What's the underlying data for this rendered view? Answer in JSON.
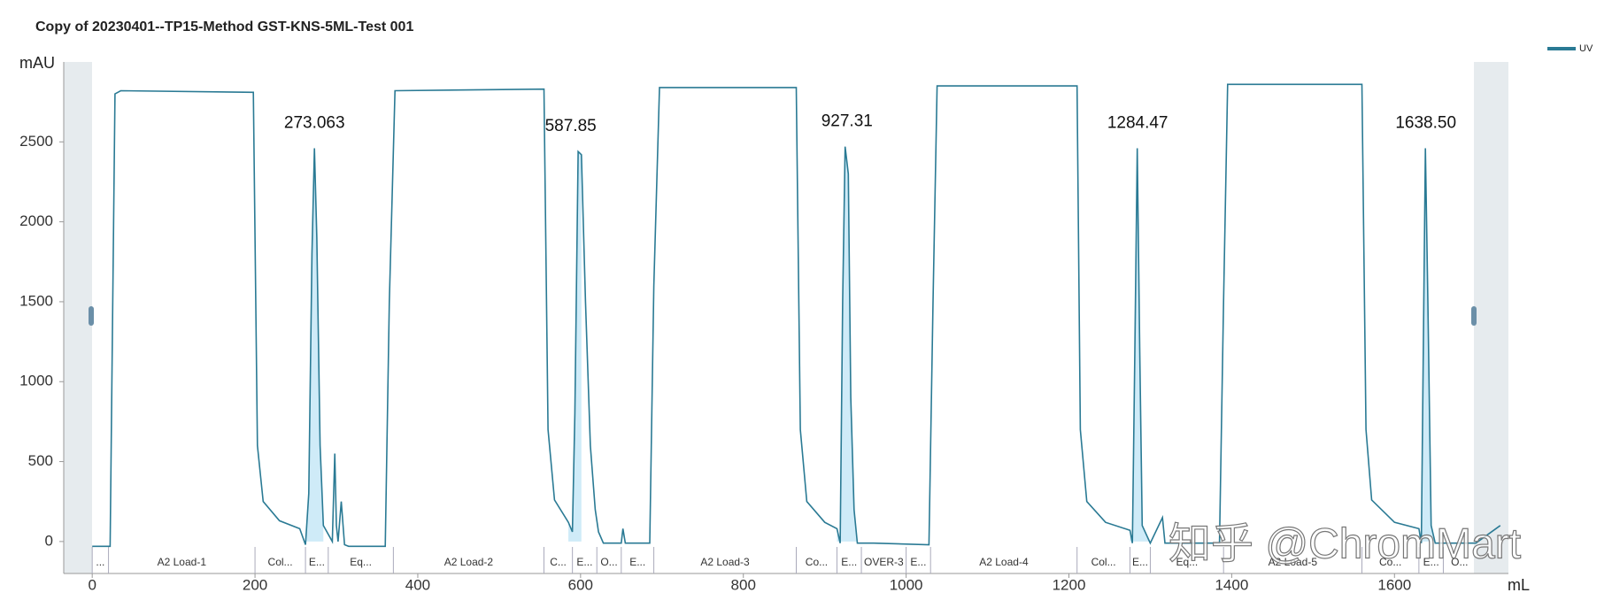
{
  "chart_data": {
    "type": "line",
    "title": "Copy of 20230401--TP15-Method GST-KNS-5ML-Test 001",
    "y_label": "mAU",
    "x_label": "mL",
    "xlim": [
      -35,
      1740
    ],
    "ylim": [
      -200,
      3000
    ],
    "xticks": [
      0,
      200,
      400,
      600,
      800,
      1000,
      1200,
      1400,
      1600
    ],
    "yticks": [
      0,
      500,
      1000,
      1500,
      2000,
      2500
    ],
    "legend_position": "top-right",
    "series": [
      {
        "name": "UV",
        "color": "#2a7a94",
        "x": [
          0,
          22,
          28,
          35,
          198,
          203,
          210,
          230,
          255,
          262,
          266,
          270,
          273,
          276,
          280,
          284,
          295,
          298,
          300,
          302,
          306,
          310,
          315,
          360,
          365,
          372,
          555,
          560,
          568,
          585,
          590,
          593,
          597,
          601,
          606,
          612,
          618,
          622,
          628,
          650,
          652,
          655,
          685,
          690,
          697,
          865,
          870,
          878,
          900,
          915,
          919,
          922,
          925,
          929,
          932,
          936,
          940,
          960,
          1028,
          1033,
          1038,
          1210,
          1214,
          1222,
          1245,
          1275,
          1278,
          1281,
          1284,
          1287,
          1290,
          1300,
          1315,
          1318,
          1385,
          1390,
          1395,
          1560,
          1565,
          1572,
          1600,
          1630,
          1633,
          1636,
          1638,
          1641,
          1645,
          1650,
          1700,
          1730
        ],
        "values": [
          -30,
          -30,
          2800,
          2820,
          2810,
          600,
          250,
          130,
          80,
          -20,
          300,
          1800,
          2460,
          1900,
          600,
          100,
          0,
          550,
          100,
          0,
          250,
          -20,
          -30,
          -30,
          1500,
          2820,
          2830,
          700,
          260,
          120,
          60,
          800,
          2440,
          2420,
          1500,
          600,
          200,
          60,
          -10,
          -10,
          80,
          -10,
          -10,
          1600,
          2840,
          2840,
          700,
          250,
          120,
          80,
          -10,
          1500,
          2470,
          2300,
          900,
          200,
          -10,
          -10,
          -20,
          1500,
          2850,
          2850,
          700,
          250,
          120,
          70,
          -10,
          1200,
          2460,
          1200,
          100,
          -10,
          150,
          -10,
          -10,
          1500,
          2860,
          2860,
          700,
          260,
          120,
          80,
          -10,
          1500,
          2460,
          1500,
          100,
          -10,
          -10,
          100
        ]
      }
    ],
    "annotations": [
      {
        "x": 273.063,
        "y": 2460,
        "label": "273.063"
      },
      {
        "x": 587.85,
        "y": 2440,
        "label": "587.85"
      },
      {
        "x": 927.31,
        "y": 2470,
        "label": "927.31"
      },
      {
        "x": 1284.47,
        "y": 2460,
        "label": "1284.47"
      },
      {
        "x": 1638.5,
        "y": 2460,
        "label": "1638.50"
      }
    ],
    "phases": [
      {
        "start": 0,
        "end": 20,
        "label": "..."
      },
      {
        "start": 20,
        "end": 200,
        "label": "A2 Load-1"
      },
      {
        "start": 200,
        "end": 262,
        "label": "Col..."
      },
      {
        "start": 262,
        "end": 290,
        "label": "E..."
      },
      {
        "start": 290,
        "end": 370,
        "label": "Eq..."
      },
      {
        "start": 370,
        "end": 555,
        "label": "A2 Load-2"
      },
      {
        "start": 555,
        "end": 590,
        "label": "C..."
      },
      {
        "start": 590,
        "end": 620,
        "label": "E..."
      },
      {
        "start": 620,
        "end": 650,
        "label": "O..."
      },
      {
        "start": 650,
        "end": 690,
        "label": "E..."
      },
      {
        "start": 690,
        "end": 865,
        "label": "A2 Load-3"
      },
      {
        "start": 865,
        "end": 915,
        "label": "Co..."
      },
      {
        "start": 915,
        "end": 945,
        "label": "E..."
      },
      {
        "start": 945,
        "end": 1000,
        "label": "OVER-3"
      },
      {
        "start": 1000,
        "end": 1030,
        "label": "E..."
      },
      {
        "start": 1030,
        "end": 1210,
        "label": "A2 Load-4"
      },
      {
        "start": 1210,
        "end": 1275,
        "label": "Col..."
      },
      {
        "start": 1275,
        "end": 1300,
        "label": "E..."
      },
      {
        "start": 1300,
        "end": 1390,
        "label": "Eq..."
      },
      {
        "start": 1390,
        "end": 1560,
        "label": "A2 Load-5"
      },
      {
        "start": 1560,
        "end": 1630,
        "label": "Co..."
      },
      {
        "start": 1630,
        "end": 1660,
        "label": "E..."
      },
      {
        "start": 1660,
        "end": 1700,
        "label": "O..."
      }
    ],
    "watermark": "知乎 @ChromMart"
  }
}
